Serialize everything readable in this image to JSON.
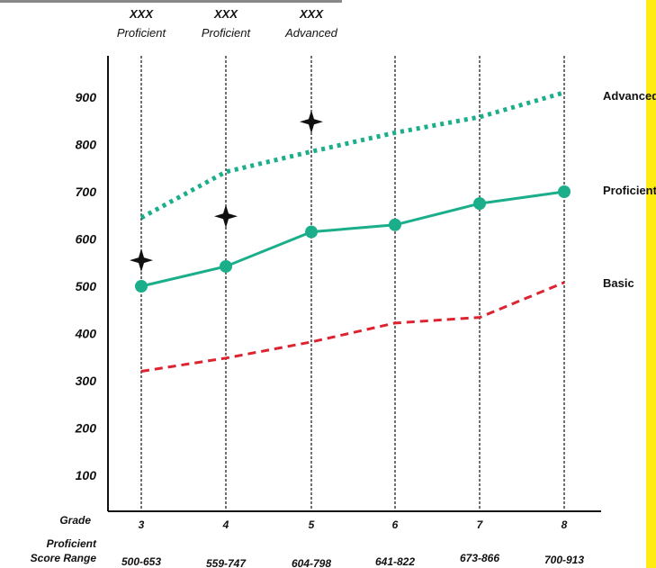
{
  "chart_data": {
    "type": "line",
    "x_axis_title": "Grade",
    "range_axis_title": [
      "Proficient",
      "Score Range"
    ],
    "categories": [
      "3",
      "4",
      "5",
      "6",
      "7",
      "8"
    ],
    "score_ranges": [
      "500-653",
      "559-747",
      "604-798",
      "641-822",
      "673-866",
      "700-913"
    ],
    "yticks": [
      100,
      200,
      300,
      400,
      500,
      600,
      700,
      800,
      900
    ],
    "ylim": [
      30,
      1000
    ],
    "grid": false,
    "series": [
      {
        "name": "Advanced",
        "values": [
          645,
          742,
          785,
          825,
          858,
          910
        ],
        "color": "#1aae8a",
        "style": "dotted"
      },
      {
        "name": "Proficient",
        "values": [
          500,
          542,
          615,
          630,
          675,
          700
        ],
        "color": "#1aae8a",
        "style": "solid",
        "markers": true
      },
      {
        "name": "Basic",
        "values": [
          320,
          348,
          382,
          422,
          434,
          508
        ],
        "color": "#dd2230",
        "style": "dashed"
      }
    ],
    "student_scores": [
      {
        "category": "3",
        "value": 555,
        "bold": "XXX",
        "level": "Proficient"
      },
      {
        "category": "4",
        "value": 648,
        "bold": "XXX",
        "level": "Proficient"
      },
      {
        "category": "5",
        "value": 848,
        "bold": "XXX",
        "level": "Advanced"
      }
    ]
  }
}
